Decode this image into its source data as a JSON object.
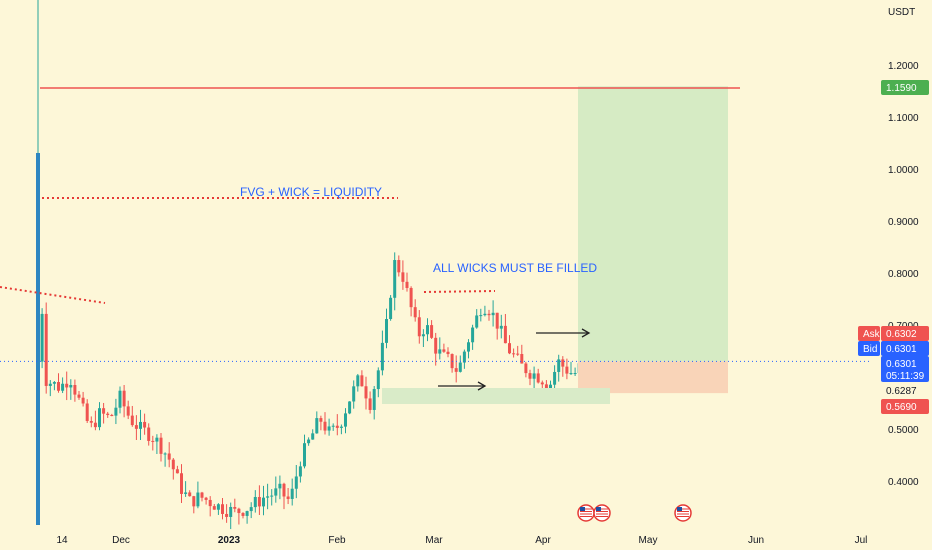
{
  "chart_data": {
    "type": "candlestick",
    "currency": "USDT",
    "y_axis": {
      "scale": "log",
      "range": [
        0.35,
        1.4
      ],
      "ticks": [
        "1.2000",
        "1.1000",
        "1.0000",
        "0.9000",
        "0.8000",
        "0.7000",
        "0.6000",
        "0.5000",
        "0.4000"
      ]
    },
    "x_axis": {
      "ticks": [
        "14",
        "Dec",
        "2023",
        "Feb",
        "Mar",
        "Apr",
        "May",
        "Jun",
        "Jul"
      ],
      "range": [
        "2022-11-08",
        "2023-07-03"
      ]
    },
    "grid": false,
    "price_labels": {
      "target": {
        "value": "1.1590",
        "color": "#4caf50"
      },
      "ask": {
        "label": "Ask",
        "value": "0.6302",
        "color": "#ef5350"
      },
      "bid": {
        "label": "Bid",
        "value": "0.6301",
        "color": "#2962ff"
      },
      "last": {
        "value": "0.6301",
        "countdown": "05:11:39",
        "color": "#2962ff"
      },
      "level": {
        "value": "0.6287"
      },
      "stop": {
        "value": "0.5690",
        "color": "#ef5350"
      }
    },
    "annotations": [
      {
        "text": "FVG + WICK = LIQUIDITY",
        "color": "#2962ff"
      },
      {
        "text": "ALL WICKS MUST BE FILLED",
        "color": "#2962ff"
      }
    ],
    "position": {
      "entry": 0.6301,
      "target": 1.159,
      "stop": 0.569
    },
    "candle_colors": {
      "up": "#26a69a",
      "down": "#ef5350"
    },
    "events": [
      {
        "type": "us-flag-icon",
        "date": "2023-04-10"
      },
      {
        "type": "us-flag-icon",
        "date": "2023-04-14"
      },
      {
        "type": "us-flag-icon",
        "date": "2023-05-03"
      }
    ]
  }
}
